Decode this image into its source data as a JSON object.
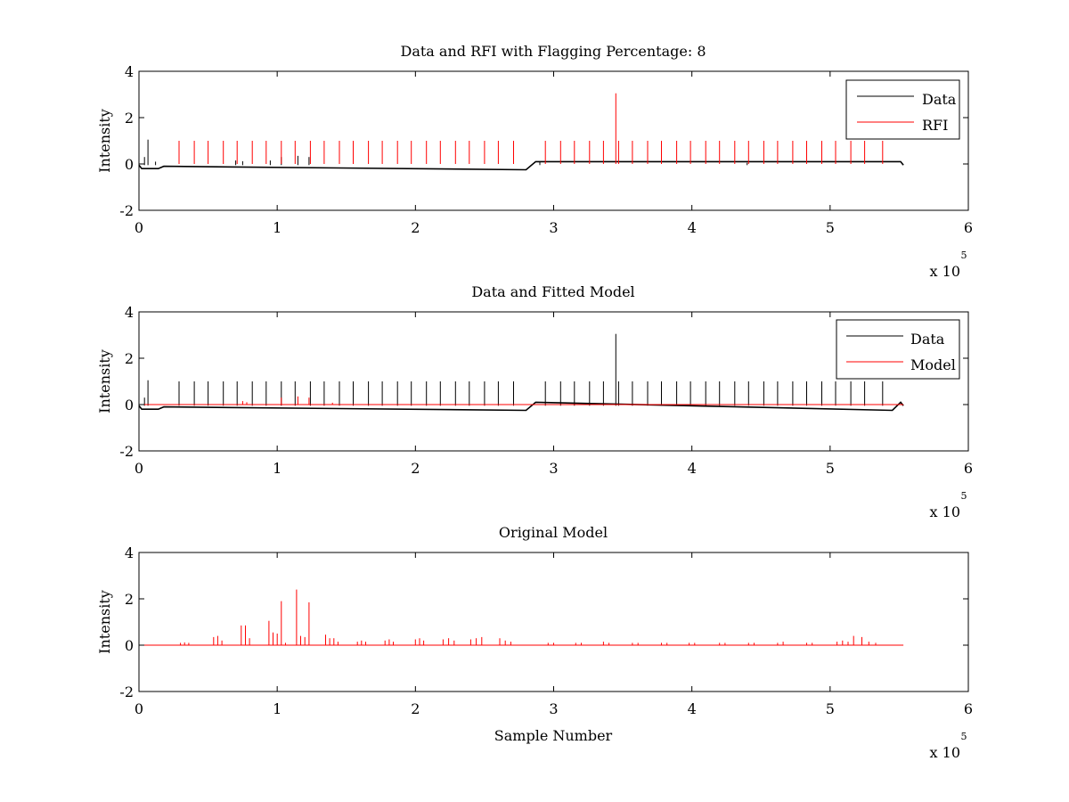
{
  "chart_data": [
    {
      "type": "line",
      "title": "Data and RFI with Flagging Percentage: 8",
      "xlabel": "",
      "ylabel": "Intensity",
      "xlim": [
        0,
        600000
      ],
      "ylim": [
        -2,
        4
      ],
      "xticks": [
        0,
        1,
        2,
        3,
        4,
        5,
        6
      ],
      "yticks": [
        -2,
        0,
        2,
        4
      ],
      "x_multiplier_base": "x 10",
      "x_multiplier_exp": "5",
      "legend": {
        "placement": "top-right"
      },
      "series": [
        {
          "name": "Data",
          "color": "#000000",
          "baseline": -0.05,
          "x_end": 553000,
          "spikes": [
            {
              "x": 4000,
              "y": 0.3
            },
            {
              "x": 6500,
              "y": 1.05
            },
            {
              "x": 12000,
              "y": 0.1
            },
            {
              "x": 70000,
              "y": 0.15
            },
            {
              "x": 75000,
              "y": 0.12
            },
            {
              "x": 95000,
              "y": 0.15
            },
            {
              "x": 103000,
              "y": 0.3
            },
            {
              "x": 115000,
              "y": 0.35
            },
            {
              "x": 123000,
              "y": 0.3
            },
            {
              "x": 290000,
              "y": 0.08
            },
            {
              "x": 440000,
              "y": 0.05
            }
          ],
          "dips": [
            {
              "x": 2000,
              "y": -0.2
            },
            {
              "x": 14000,
              "y": -0.2
            },
            {
              "x": 18000,
              "y": -0.1
            },
            {
              "x": 280000,
              "y": -0.25
            },
            {
              "x": 287000,
              "y": 0.1
            },
            {
              "x": 551000,
              "y": 0.1
            }
          ]
        },
        {
          "name": "RFI",
          "color": "#ff0000",
          "spikes": [
            {
              "x": 29000,
              "y": 1.0
            },
            {
              "x": 40000,
              "y": 1.0
            },
            {
              "x": 50000,
              "y": 1.0
            },
            {
              "x": 61000,
              "y": 1.0
            },
            {
              "x": 71000,
              "y": 1.0
            },
            {
              "x": 82000,
              "y": 1.0
            },
            {
              "x": 92000,
              "y": 1.0
            },
            {
              "x": 103000,
              "y": 1.0
            },
            {
              "x": 113000,
              "y": 1.0
            },
            {
              "x": 124000,
              "y": 1.0
            },
            {
              "x": 134000,
              "y": 1.0
            },
            {
              "x": 145000,
              "y": 1.0
            },
            {
              "x": 155000,
              "y": 1.0
            },
            {
              "x": 166000,
              "y": 1.0
            },
            {
              "x": 176000,
              "y": 1.0
            },
            {
              "x": 187000,
              "y": 1.0
            },
            {
              "x": 197000,
              "y": 1.0
            },
            {
              "x": 208000,
              "y": 1.0
            },
            {
              "x": 218000,
              "y": 1.0
            },
            {
              "x": 229000,
              "y": 1.0
            },
            {
              "x": 239000,
              "y": 1.0
            },
            {
              "x": 250000,
              "y": 1.0
            },
            {
              "x": 260000,
              "y": 1.0
            },
            {
              "x": 271000,
              "y": 1.0
            },
            {
              "x": 294000,
              "y": 1.0
            },
            {
              "x": 305000,
              "y": 1.0
            },
            {
              "x": 315000,
              "y": 1.0
            },
            {
              "x": 326000,
              "y": 1.0
            },
            {
              "x": 336000,
              "y": 1.0
            },
            {
              "x": 345000,
              "y": 3.05
            },
            {
              "x": 347000,
              "y": 1.0
            },
            {
              "x": 357000,
              "y": 1.0
            },
            {
              "x": 368000,
              "y": 1.0
            },
            {
              "x": 378000,
              "y": 1.0
            },
            {
              "x": 389000,
              "y": 1.0
            },
            {
              "x": 399000,
              "y": 1.0
            },
            {
              "x": 410000,
              "y": 1.0
            },
            {
              "x": 420000,
              "y": 1.0
            },
            {
              "x": 431000,
              "y": 1.0
            },
            {
              "x": 441000,
              "y": 1.0
            },
            {
              "x": 452000,
              "y": 1.0
            },
            {
              "x": 462000,
              "y": 1.0
            },
            {
              "x": 473000,
              "y": 1.0
            },
            {
              "x": 483000,
              "y": 1.0
            },
            {
              "x": 494000,
              "y": 1.0
            },
            {
              "x": 504000,
              "y": 1.0
            },
            {
              "x": 515000,
              "y": 1.0
            },
            {
              "x": 525000,
              "y": 1.0
            },
            {
              "x": 538000,
              "y": 1.0
            }
          ]
        }
      ]
    },
    {
      "type": "line",
      "title": "Data and Fitted Model",
      "xlabel": "",
      "ylabel": "Intensity",
      "xlim": [
        0,
        600000
      ],
      "ylim": [
        -2,
        4
      ],
      "xticks": [
        0,
        1,
        2,
        3,
        4,
        5,
        6
      ],
      "yticks": [
        -2,
        0,
        2,
        4
      ],
      "x_multiplier_base": "x 10",
      "x_multiplier_exp": "5",
      "legend": {
        "placement": "top-right"
      },
      "series": [
        {
          "name": "Data",
          "color": "#000000",
          "baseline": -0.05,
          "x_end": 553000,
          "spikes": [
            {
              "x": 4000,
              "y": 0.3
            },
            {
              "x": 6500,
              "y": 1.05
            },
            {
              "x": 29000,
              "y": 1.0
            },
            {
              "x": 40000,
              "y": 1.0
            },
            {
              "x": 50000,
              "y": 1.0
            },
            {
              "x": 61000,
              "y": 1.0
            },
            {
              "x": 71000,
              "y": 1.0
            },
            {
              "x": 82000,
              "y": 1.0
            },
            {
              "x": 92000,
              "y": 1.0
            },
            {
              "x": 103000,
              "y": 1.0
            },
            {
              "x": 113000,
              "y": 1.0
            },
            {
              "x": 124000,
              "y": 1.0
            },
            {
              "x": 134000,
              "y": 1.0
            },
            {
              "x": 145000,
              "y": 1.0
            },
            {
              "x": 155000,
              "y": 1.0
            },
            {
              "x": 166000,
              "y": 1.0
            },
            {
              "x": 176000,
              "y": 1.0
            },
            {
              "x": 187000,
              "y": 1.0
            },
            {
              "x": 197000,
              "y": 1.0
            },
            {
              "x": 208000,
              "y": 1.0
            },
            {
              "x": 218000,
              "y": 1.0
            },
            {
              "x": 229000,
              "y": 1.0
            },
            {
              "x": 239000,
              "y": 1.0
            },
            {
              "x": 250000,
              "y": 1.0
            },
            {
              "x": 260000,
              "y": 1.0
            },
            {
              "x": 271000,
              "y": 1.0
            },
            {
              "x": 294000,
              "y": 1.0
            },
            {
              "x": 305000,
              "y": 1.0
            },
            {
              "x": 315000,
              "y": 1.0
            },
            {
              "x": 326000,
              "y": 1.0
            },
            {
              "x": 336000,
              "y": 1.0
            },
            {
              "x": 345000,
              "y": 3.05
            },
            {
              "x": 347000,
              "y": 1.0
            },
            {
              "x": 357000,
              "y": 1.0
            },
            {
              "x": 368000,
              "y": 1.0
            },
            {
              "x": 378000,
              "y": 1.0
            },
            {
              "x": 389000,
              "y": 1.0
            },
            {
              "x": 399000,
              "y": 1.0
            },
            {
              "x": 410000,
              "y": 1.0
            },
            {
              "x": 420000,
              "y": 1.0
            },
            {
              "x": 431000,
              "y": 1.0
            },
            {
              "x": 441000,
              "y": 1.0
            },
            {
              "x": 452000,
              "y": 1.0
            },
            {
              "x": 462000,
              "y": 1.0
            },
            {
              "x": 473000,
              "y": 1.0
            },
            {
              "x": 483000,
              "y": 1.0
            },
            {
              "x": 494000,
              "y": 1.0
            },
            {
              "x": 504000,
              "y": 1.0
            },
            {
              "x": 515000,
              "y": 1.0
            },
            {
              "x": 525000,
              "y": 1.0
            },
            {
              "x": 538000,
              "y": 1.0
            }
          ],
          "dips": [
            {
              "x": 2000,
              "y": -0.2
            },
            {
              "x": 14000,
              "y": -0.2
            },
            {
              "x": 18000,
              "y": -0.1
            },
            {
              "x": 280000,
              "y": -0.25
            },
            {
              "x": 287000,
              "y": 0.1
            },
            {
              "x": 545000,
              "y": -0.25
            },
            {
              "x": 551000,
              "y": 0.1
            }
          ]
        },
        {
          "name": "Model",
          "color": "#ff0000",
          "baseline": 0.0,
          "x_end": 553000,
          "spikes": [
            {
              "x": 75000,
              "y": 0.15
            },
            {
              "x": 78000,
              "y": 0.1
            },
            {
              "x": 103000,
              "y": 0.3
            },
            {
              "x": 115000,
              "y": 0.35
            },
            {
              "x": 123000,
              "y": 0.3
            },
            {
              "x": 140000,
              "y": 0.08
            }
          ]
        }
      ]
    },
    {
      "type": "line",
      "title": "Original Model",
      "xlabel": "Sample Number",
      "ylabel": "Intensity",
      "xlim": [
        0,
        600000
      ],
      "ylim": [
        -2,
        4
      ],
      "xticks": [
        0,
        1,
        2,
        3,
        4,
        5,
        6
      ],
      "yticks": [
        -2,
        0,
        2,
        4
      ],
      "x_multiplier_base": "x 10",
      "x_multiplier_exp": "5",
      "series": [
        {
          "color": "#ff0000",
          "baseline": 0.0,
          "x_end": 553000,
          "spikes": [
            {
              "x": 30000,
              "y": 0.1
            },
            {
              "x": 33000,
              "y": 0.12
            },
            {
              "x": 36000,
              "y": 0.1
            },
            {
              "x": 54000,
              "y": 0.35
            },
            {
              "x": 57000,
              "y": 0.4
            },
            {
              "x": 60000,
              "y": 0.2
            },
            {
              "x": 74000,
              "y": 0.85
            },
            {
              "x": 77000,
              "y": 0.85
            },
            {
              "x": 80000,
              "y": 0.3
            },
            {
              "x": 94000,
              "y": 1.05
            },
            {
              "x": 97000,
              "y": 0.55
            },
            {
              "x": 100000,
              "y": 0.5
            },
            {
              "x": 103000,
              "y": 1.9
            },
            {
              "x": 106000,
              "y": 0.1
            },
            {
              "x": 114000,
              "y": 2.4
            },
            {
              "x": 117000,
              "y": 0.4
            },
            {
              "x": 120000,
              "y": 0.35
            },
            {
              "x": 123000,
              "y": 1.85
            },
            {
              "x": 135000,
              "y": 0.45
            },
            {
              "x": 138000,
              "y": 0.3
            },
            {
              "x": 141000,
              "y": 0.3
            },
            {
              "x": 144000,
              "y": 0.15
            },
            {
              "x": 158000,
              "y": 0.15
            },
            {
              "x": 161000,
              "y": 0.2
            },
            {
              "x": 164000,
              "y": 0.15
            },
            {
              "x": 178000,
              "y": 0.2
            },
            {
              "x": 181000,
              "y": 0.25
            },
            {
              "x": 184000,
              "y": 0.15
            },
            {
              "x": 200000,
              "y": 0.25
            },
            {
              "x": 203000,
              "y": 0.3
            },
            {
              "x": 206000,
              "y": 0.2
            },
            {
              "x": 220000,
              "y": 0.25
            },
            {
              "x": 224000,
              "y": 0.3
            },
            {
              "x": 228000,
              "y": 0.2
            },
            {
              "x": 240000,
              "y": 0.25
            },
            {
              "x": 244000,
              "y": 0.3
            },
            {
              "x": 248000,
              "y": 0.35
            },
            {
              "x": 261000,
              "y": 0.3
            },
            {
              "x": 265000,
              "y": 0.2
            },
            {
              "x": 269000,
              "y": 0.15
            },
            {
              "x": 296000,
              "y": 0.1
            },
            {
              "x": 300000,
              "y": 0.1
            },
            {
              "x": 316000,
              "y": 0.1
            },
            {
              "x": 320000,
              "y": 0.1
            },
            {
              "x": 336000,
              "y": 0.15
            },
            {
              "x": 340000,
              "y": 0.1
            },
            {
              "x": 357000,
              "y": 0.1
            },
            {
              "x": 361000,
              "y": 0.1
            },
            {
              "x": 378000,
              "y": 0.1
            },
            {
              "x": 382000,
              "y": 0.1
            },
            {
              "x": 398000,
              "y": 0.1
            },
            {
              "x": 402000,
              "y": 0.1
            },
            {
              "x": 420000,
              "y": 0.1
            },
            {
              "x": 424000,
              "y": 0.1
            },
            {
              "x": 441000,
              "y": 0.1
            },
            {
              "x": 445000,
              "y": 0.1
            },
            {
              "x": 462000,
              "y": 0.1
            },
            {
              "x": 466000,
              "y": 0.15
            },
            {
              "x": 483000,
              "y": 0.1
            },
            {
              "x": 487000,
              "y": 0.1
            },
            {
              "x": 505000,
              "y": 0.15
            },
            {
              "x": 509000,
              "y": 0.2
            },
            {
              "x": 513000,
              "y": 0.15
            },
            {
              "x": 517000,
              "y": 0.4
            },
            {
              "x": 523000,
              "y": 0.35
            },
            {
              "x": 528000,
              "y": 0.15
            },
            {
              "x": 533000,
              "y": 0.1
            }
          ]
        }
      ]
    }
  ]
}
